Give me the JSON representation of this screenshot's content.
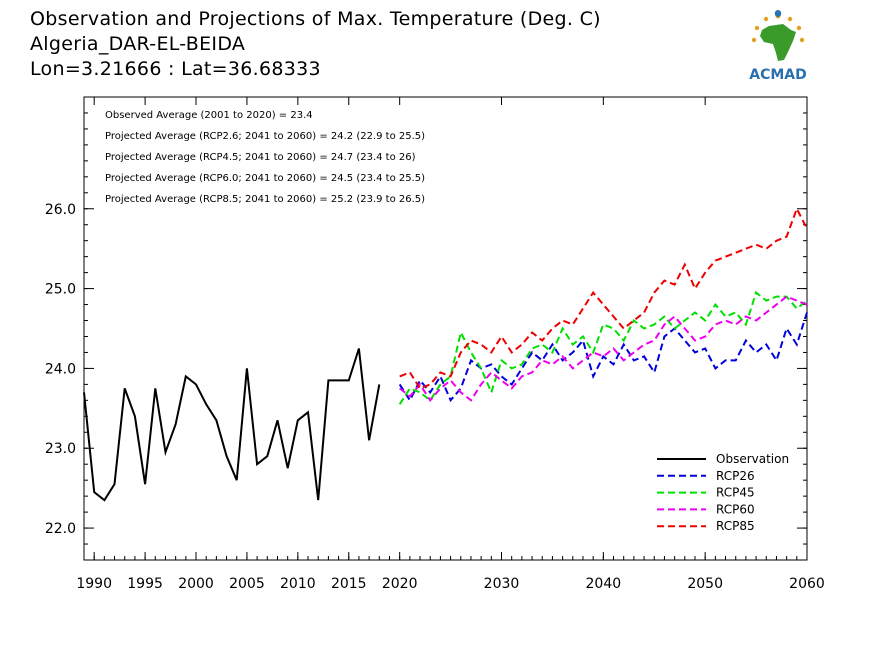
{
  "header": {
    "title": "Observation and Projections of Max. Temperature (Deg. C)",
    "station": "Algeria_DAR-EL-BEIDA",
    "coords": "Lon=3.21666 : Lat=36.68333"
  },
  "logo": {
    "text": "ACMAD",
    "icon": "africa-map-logo",
    "colors": {
      "africa": "#3a9a2a",
      "text": "#2a6fb0",
      "sun": "#e6a020"
    }
  },
  "chart_data": {
    "type": "line",
    "xlim": [
      1989,
      2060
    ],
    "ylim": [
      21.6,
      27.4
    ],
    "x_ticks": [
      1990,
      1995,
      2000,
      2005,
      2010,
      2015,
      2020,
      2030,
      2040,
      2050,
      2060
    ],
    "y_ticks": [
      22.0,
      23.0,
      24.0,
      25.0,
      26.0
    ],
    "y_tick_labels": [
      "22.0",
      "23.0",
      "24.0",
      "25.0",
      "26.0"
    ],
    "annotations": [
      "Observed Average (2001 to 2020) = 23.4",
      "Projected Average (RCP2.6; 2041 to 2060) = 24.2 (22.9 to 25.5)",
      "Projected Average (RCP4.5; 2041 to 2060) = 24.7 (23.4 to 26)",
      "Projected Average (RCP6.0; 2041 to 2060) = 24.5 (23.4 to 25.5)",
      "Projected Average (RCP8.5; 2041 to 2060) = 25.2 (23.9 to 26.5)"
    ],
    "legend_position": "bottom-right",
    "series": [
      {
        "name": "Observation",
        "color": "#000000",
        "dash": "solid",
        "x": [
          1989,
          1990,
          1991,
          1992,
          1993,
          1994,
          1995,
          1996,
          1997,
          1998,
          1999,
          2000,
          2001,
          2002,
          2003,
          2004,
          2005,
          2006,
          2007,
          2008,
          2009,
          2010,
          2011,
          2012,
          2013,
          2014,
          2015,
          2016,
          2017,
          2018,
          2019
        ],
        "values": [
          23.7,
          22.45,
          22.35,
          22.55,
          23.75,
          23.4,
          22.55,
          23.75,
          22.95,
          23.3,
          23.9,
          23.8,
          23.55,
          23.35,
          22.9,
          22.6,
          24.0,
          22.8,
          22.9,
          23.35,
          22.75,
          23.35,
          23.45,
          22.35,
          23.85,
          23.85,
          23.85,
          24.25,
          23.1,
          23.8,
          null
        ]
      },
      {
        "name": "RCP26",
        "color": "#0000dd",
        "dash": "dashed",
        "x": [
          2020,
          2021,
          2022,
          2023,
          2024,
          2025,
          2026,
          2027,
          2028,
          2029,
          2030,
          2031,
          2032,
          2033,
          2034,
          2035,
          2036,
          2037,
          2038,
          2039,
          2040,
          2041,
          2042,
          2043,
          2044,
          2045,
          2046,
          2047,
          2048,
          2049,
          2050,
          2051,
          2052,
          2053,
          2054,
          2055,
          2056,
          2057,
          2058,
          2059,
          2060
        ],
        "values": [
          23.8,
          23.6,
          23.85,
          23.7,
          23.9,
          23.6,
          23.75,
          24.1,
          24.0,
          24.05,
          23.9,
          23.8,
          24.0,
          24.2,
          24.1,
          24.3,
          24.1,
          24.2,
          24.35,
          23.9,
          24.15,
          24.05,
          24.3,
          24.1,
          24.15,
          23.95,
          24.4,
          24.5,
          24.35,
          24.2,
          24.25,
          24.0,
          24.1,
          24.1,
          24.35,
          24.2,
          24.3,
          24.1,
          24.5,
          24.3,
          24.7
        ]
      },
      {
        "name": "RCP45",
        "color": "#00e000",
        "dash": "dashed",
        "x": [
          2020,
          2021,
          2022,
          2023,
          2024,
          2025,
          2026,
          2027,
          2028,
          2029,
          2030,
          2031,
          2032,
          2033,
          2034,
          2035,
          2036,
          2037,
          2038,
          2039,
          2040,
          2041,
          2042,
          2043,
          2044,
          2045,
          2046,
          2047,
          2048,
          2049,
          2050,
          2051,
          2052,
          2053,
          2054,
          2055,
          2056,
          2057,
          2058,
          2059,
          2060
        ],
        "values": [
          23.55,
          23.75,
          23.7,
          23.6,
          23.8,
          23.9,
          24.45,
          24.2,
          24.0,
          23.7,
          24.1,
          24.0,
          24.05,
          24.25,
          24.3,
          24.2,
          24.5,
          24.3,
          24.4,
          24.2,
          24.55,
          24.5,
          24.35,
          24.6,
          24.5,
          24.55,
          24.65,
          24.5,
          24.6,
          24.7,
          24.6,
          24.8,
          24.65,
          24.7,
          24.55,
          24.95,
          24.85,
          24.9,
          24.9,
          24.75,
          24.85
        ]
      },
      {
        "name": "RCP60",
        "color": "#ee00ee",
        "dash": "dashed",
        "x": [
          2020,
          2021,
          2022,
          2023,
          2024,
          2025,
          2026,
          2027,
          2028,
          2029,
          2030,
          2031,
          2032,
          2033,
          2034,
          2035,
          2036,
          2037,
          2038,
          2039,
          2040,
          2041,
          2042,
          2043,
          2044,
          2045,
          2046,
          2047,
          2048,
          2049,
          2050,
          2051,
          2052,
          2053,
          2054,
          2055,
          2056,
          2057,
          2058,
          2059,
          2060
        ],
        "values": [
          23.75,
          23.65,
          23.8,
          23.6,
          23.75,
          23.85,
          23.7,
          23.6,
          23.8,
          23.95,
          23.85,
          23.75,
          23.9,
          23.95,
          24.1,
          24.05,
          24.15,
          24.0,
          24.1,
          24.2,
          24.15,
          24.25,
          24.1,
          24.2,
          24.3,
          24.35,
          24.55,
          24.65,
          24.5,
          24.35,
          24.4,
          24.55,
          24.6,
          24.55,
          24.65,
          24.6,
          24.7,
          24.8,
          24.9,
          24.85,
          24.8
        ]
      },
      {
        "name": "RCP85",
        "color": "#ee0000",
        "dash": "dashed",
        "x": [
          2020,
          2021,
          2022,
          2023,
          2024,
          2025,
          2026,
          2027,
          2028,
          2029,
          2030,
          2031,
          2032,
          2033,
          2034,
          2035,
          2036,
          2037,
          2038,
          2039,
          2040,
          2041,
          2042,
          2043,
          2044,
          2045,
          2046,
          2047,
          2048,
          2049,
          2050,
          2051,
          2052,
          2053,
          2054,
          2055,
          2056,
          2057,
          2058,
          2059,
          2060
        ],
        "values": [
          23.9,
          23.95,
          23.75,
          23.8,
          23.95,
          23.9,
          24.2,
          24.35,
          24.3,
          24.2,
          24.4,
          24.2,
          24.3,
          24.45,
          24.35,
          24.5,
          24.6,
          24.55,
          24.75,
          24.95,
          24.8,
          24.65,
          24.5,
          24.6,
          24.7,
          24.95,
          25.1,
          25.05,
          25.3,
          25.0,
          25.2,
          25.35,
          25.4,
          25.45,
          25.5,
          25.55,
          25.5,
          25.6,
          25.65,
          26.0,
          25.75
        ]
      }
    ]
  }
}
